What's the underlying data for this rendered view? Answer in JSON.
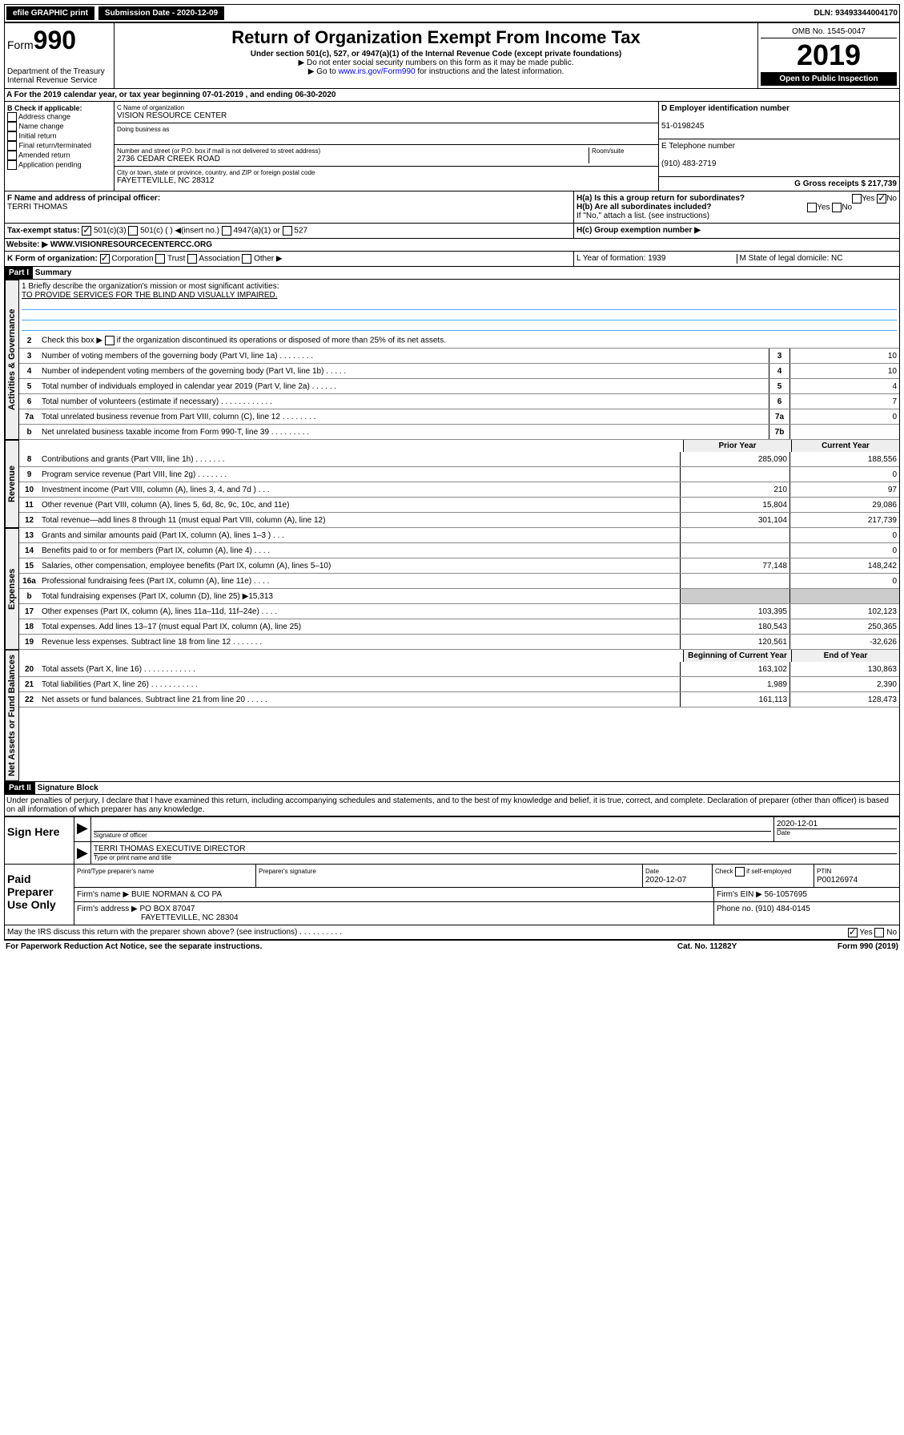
{
  "top": {
    "efile": "efile GRAPHIC print",
    "sub_label": "Submission Date - 2020-12-09",
    "dln": "DLN: 93493344004170"
  },
  "header": {
    "form_prefix": "Form",
    "form_num": "990",
    "dept": "Department of the Treasury",
    "irs": "Internal Revenue Service",
    "title": "Return of Organization Exempt From Income Tax",
    "sub1": "Under section 501(c), 527, or 4947(a)(1) of the Internal Revenue Code (except private foundations)",
    "sub2": "▶ Do not enter social security numbers on this form as it may be made public.",
    "sub3": "▶ Go to www.irs.gov/Form990 for instructions and the latest information.",
    "omb": "OMB No. 1545-0047",
    "year": "2019",
    "open": "Open to Public Inspection"
  },
  "period": "A For the 2019 calendar year, or tax year beginning 07-01-2019    , and ending 06-30-2020",
  "boxB": {
    "title": "B Check if applicable:",
    "items": [
      "Address change",
      "Name change",
      "Initial return",
      "Final return/terminated",
      "Amended return",
      "Application pending"
    ]
  },
  "boxC": {
    "name_label": "C Name of organization",
    "name": "VISION RESOURCE CENTER",
    "dba": "Doing business as",
    "addr_label": "Number and street (or P.O. box if mail is not delivered to street address)",
    "room": "Room/suite",
    "addr": "2736 CEDAR CREEK ROAD",
    "city_label": "City or town, state or province, country, and ZIP or foreign postal code",
    "city": "FAYETTEVILLE, NC  28312"
  },
  "boxD": {
    "label": "D Employer identification number",
    "ein": "51-0198245"
  },
  "boxE": {
    "label": "E Telephone number",
    "phone": "(910) 483-2719"
  },
  "boxG": {
    "label": "G Gross receipts $ 217,739"
  },
  "boxF": {
    "label": "F  Name and address of principal officer:",
    "name": "TERRI THOMAS"
  },
  "boxH": {
    "a": "H(a)  Is this a group return for subordinates?",
    "b": "H(b)  Are all subordinates included?",
    "b2": "If \"No,\" attach a list. (see instructions)",
    "c": "H(c)  Group exemption number ▶"
  },
  "boxI": {
    "label": "Tax-exempt status:",
    "opts": "501(c)(3)      501(c) (  ) ◀(insert no.)      4947(a)(1) or      527"
  },
  "boxJ": {
    "label": "Website: ▶",
    "url": "WWW.VISIONRESOURCECENTERCC.ORG"
  },
  "boxK": {
    "label": "K Form of organization:",
    "opts": "Corporation     Trust     Association     Other ▶"
  },
  "boxL": "L Year of formation: 1939",
  "boxM": "M State of legal domicile: NC",
  "part1": {
    "title": "Part I",
    "sub": "Summary",
    "l1": "1  Briefly describe the organization's mission or most significant activities:",
    "l1v": "TO PROVIDE SERVICES FOR THE BLIND AND VISUALLY IMPAIRED.",
    "l2": "2   Check this box ▶      if the organization discontinued its operations or disposed of more than 25% of its net assets.",
    "lines": [
      {
        "n": "3",
        "d": "Number of voting members of the governing body (Part VI, line 1a)   .    .    .    .    .    .    .    .",
        "b": "3",
        "v": "10"
      },
      {
        "n": "4",
        "d": "Number of independent voting members of the governing body (Part VI, line 1b)  .    .    .    .    .",
        "b": "4",
        "v": "10"
      },
      {
        "n": "5",
        "d": "Total number of individuals employed in calendar year 2019 (Part V, line 2a)  .    .    .    .    .    .",
        "b": "5",
        "v": "4"
      },
      {
        "n": "6",
        "d": "Total number of volunteers (estimate if necessary)   .    .    .    .    .    .    .    .    .    .    .    .",
        "b": "6",
        "v": "7"
      },
      {
        "n": "7a",
        "d": "Total unrelated business revenue from Part VIII, column (C), line 12  .    .    .    .    .    .    .    .",
        "b": "7a",
        "v": "0"
      },
      {
        "n": "b",
        "d": "Net unrelated business taxable income from Form 990-T, line 39   .    .    .    .    .    .    .    .    .",
        "b": "7b",
        "v": ""
      }
    ],
    "hdr_prior": "Prior Year",
    "hdr_curr": "Current Year",
    "rev": [
      {
        "n": "8",
        "d": "Contributions and grants (Part VIII, line 1h)  .    .    .    .    .    .    .",
        "p": "285,090",
        "c": "188,556"
      },
      {
        "n": "9",
        "d": "Program service revenue (Part VIII, line 2g)  .    .    .    .    .    .    .",
        "p": "",
        "c": "0"
      },
      {
        "n": "10",
        "d": "Investment income (Part VIII, column (A), lines 3, 4, and 7d )  .    .    .",
        "p": "210",
        "c": "97"
      },
      {
        "n": "11",
        "d": "Other revenue (Part VIII, column (A), lines 5, 6d, 8c, 9c, 10c, and 11e)",
        "p": "15,804",
        "c": "29,086"
      },
      {
        "n": "12",
        "d": "Total revenue—add lines 8 through 11 (must equal Part VIII, column (A), line 12)",
        "p": "301,104",
        "c": "217,739"
      }
    ],
    "exp": [
      {
        "n": "13",
        "d": "Grants and similar amounts paid (Part IX, column (A), lines 1–3 )  .    .    .",
        "p": "",
        "c": "0"
      },
      {
        "n": "14",
        "d": "Benefits paid to or for members (Part IX, column (A), line 4)  .    .    .    .",
        "p": "",
        "c": "0"
      },
      {
        "n": "15",
        "d": "Salaries, other compensation, employee benefits (Part IX, column (A), lines 5–10)",
        "p": "77,148",
        "c": "148,242"
      },
      {
        "n": "16a",
        "d": "Professional fundraising fees (Part IX, column (A), line 11e)  .    .    .    .",
        "p": "",
        "c": "0"
      },
      {
        "n": "b",
        "d": "Total fundraising expenses (Part IX, column (D), line 25) ▶15,313",
        "p": null,
        "c": null
      },
      {
        "n": "17",
        "d": "Other expenses (Part IX, column (A), lines 11a–11d, 11f–24e)  .    .    .    .",
        "p": "103,395",
        "c": "102,123"
      },
      {
        "n": "18",
        "d": "Total expenses. Add lines 13–17 (must equal Part IX, column (A), line 25)",
        "p": "180,543",
        "c": "250,365"
      },
      {
        "n": "19",
        "d": "Revenue less expenses. Subtract line 18 from line 12  .    .    .    .    .    .    .",
        "p": "120,561",
        "c": "-32,626"
      }
    ],
    "hdr_beg": "Beginning of Current Year",
    "hdr_end": "End of Year",
    "net": [
      {
        "n": "20",
        "d": "Total assets (Part X, line 16)  .    .    .    .    .    .    .    .    .    .    .    .",
        "p": "163,102",
        "c": "130,863"
      },
      {
        "n": "21",
        "d": "Total liabilities (Part X, line 26)  .    .    .    .    .    .    .    .    .    .    .",
        "p": "1,989",
        "c": "2,390"
      },
      {
        "n": "22",
        "d": "Net assets or fund balances. Subtract line 21 from line 20  .    .    .    .    .",
        "p": "161,113",
        "c": "128,473"
      }
    ]
  },
  "side": {
    "gov": "Activities & Governance",
    "rev": "Revenue",
    "exp": "Expenses",
    "net": "Net Assets or Fund Balances"
  },
  "part2": {
    "title": "Part II",
    "sub": "Signature Block",
    "decl": "Under penalties of perjury, I declare that I have examined this return, including accompanying schedules and statements, and to the best of my knowledge and belief, it is true, correct, and complete. Declaration of preparer (other than officer) is based on all information of which preparer has any knowledge."
  },
  "sign": {
    "here": "Sign Here",
    "sig_off": "Signature of officer",
    "date": "2020-12-01",
    "date_lbl": "Date",
    "name": "TERRI THOMAS  EXECUTIVE DIRECTOR",
    "name_lbl": "Type or print name and title"
  },
  "paid": {
    "title": "Paid Preparer Use Only",
    "h1": "Print/Type preparer's name",
    "h2": "Preparer's signature",
    "h3": "Date",
    "d3": "2020-12-07",
    "h4": "Check      if self-employed",
    "h5": "PTIN",
    "ptin": "P00126974",
    "firm_lbl": "Firm's name    ▶",
    "firm": "BUIE NORMAN & CO PA",
    "ein_lbl": "Firm's EIN ▶",
    "ein": "56-1057695",
    "addr_lbl": "Firm's address ▶",
    "addr1": "PO BOX 87047",
    "addr2": "FAYETTEVILLE, NC  28304",
    "phone_lbl": "Phone no.",
    "phone": "(910) 484-0145"
  },
  "discuss": "May the IRS discuss this return with the preparer shown above? (see instructions)   .    .    .    .    .    .    .    .    .    .",
  "footer": {
    "l": "For Paperwork Reduction Act Notice, see the separate instructions.",
    "c": "Cat. No. 11282Y",
    "r": "Form 990 (2019)"
  }
}
